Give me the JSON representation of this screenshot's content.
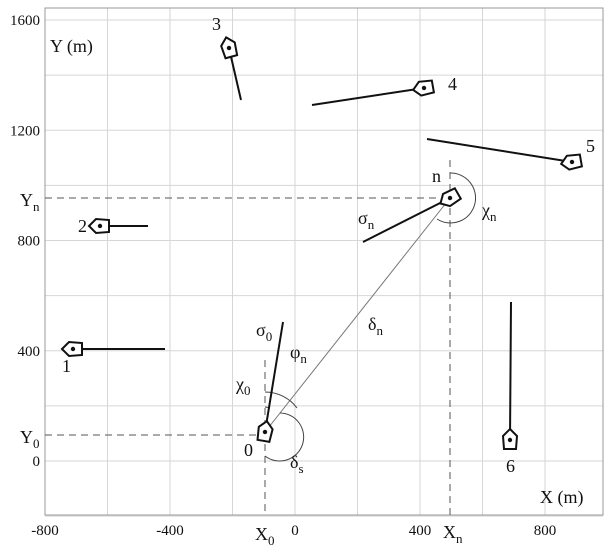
{
  "axes": {
    "x_label": "X (m)",
    "y_label": "Y (m)",
    "x_ticks": [
      -800,
      -400,
      0,
      400,
      800
    ],
    "y_ticks": [
      0,
      400,
      800,
      1200,
      1600
    ]
  },
  "symbols": {
    "y_n": {
      "main": "Y",
      "sub": "n"
    },
    "y_0": {
      "main": "Y",
      "sub": "0"
    },
    "x_0": {
      "main": "X",
      "sub": "0"
    },
    "x_n": {
      "main": "X",
      "sub": "n"
    },
    "sigma_n": {
      "main": "σ",
      "sub": "n"
    },
    "chi_n": {
      "main": "χ",
      "sub": "n"
    },
    "delta_n": {
      "main": "δ",
      "sub": "n"
    },
    "sigma_0": {
      "main": "σ",
      "sub": "0"
    },
    "phi_n": {
      "main": "φ",
      "sub": "n"
    },
    "chi_0": {
      "main": "χ",
      "sub": "0"
    },
    "delta_s": {
      "main": "δ",
      "sub": "s"
    }
  },
  "ships": [
    "0",
    "1",
    "2",
    "3",
    "4",
    "5",
    "6",
    "n"
  ]
}
